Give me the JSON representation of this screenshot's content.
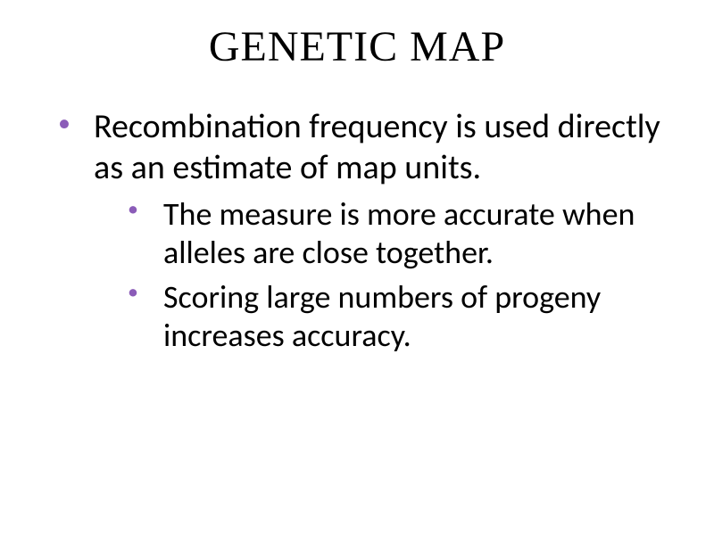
{
  "slide": {
    "title": "GENETIC MAP",
    "title_fontsize": 48,
    "title_color": "#000000",
    "title_font": "Georgia, serif",
    "background_color": "#ffffff",
    "bullet_color": "#8b5cb8",
    "body_fontsize_l1": 38,
    "body_fontsize_l2": 36,
    "body_color": "#000000",
    "body_font": "Segoe UI, Calibri, sans-serif",
    "bullets": [
      {
        "level": 1,
        "text": "Recombination frequency is used directly as an estimate of map units.",
        "children": [
          {
            "level": 2,
            "text": "The measure is more accurate when alleles are close together."
          },
          {
            "level": 2,
            "text": "Scoring large numbers of progeny increases accuracy."
          }
        ]
      }
    ]
  }
}
